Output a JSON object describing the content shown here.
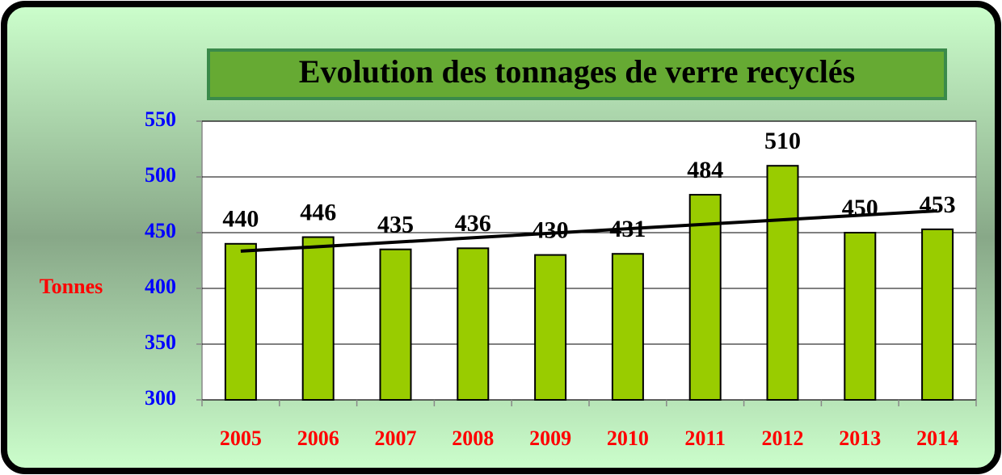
{
  "chart_data": {
    "type": "bar",
    "title": "Evolution des tonnages de verre recyclés",
    "y_label": "Tonnes",
    "categories": [
      "2005",
      "2006",
      "2007",
      "2008",
      "2009",
      "2010",
      "2011",
      "2012",
      "2013",
      "2014"
    ],
    "values": [
      440,
      446,
      435,
      436,
      430,
      431,
      484,
      510,
      450,
      453
    ],
    "color": "#99cc00",
    "trendline": [
      433.4,
      469.6
    ],
    "ylim": [
      300,
      550
    ],
    "yticks": [
      300,
      350,
      400,
      450,
      500,
      550
    ],
    "grid": true
  }
}
